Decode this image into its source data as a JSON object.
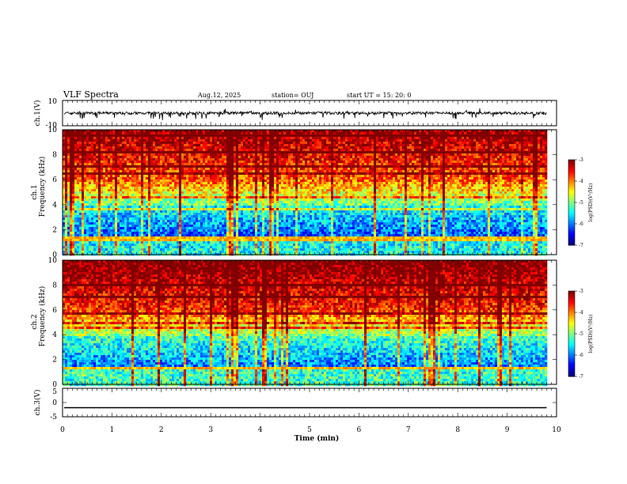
{
  "header": {
    "title": "VLF Spectra",
    "date": "Aug.12, 2025",
    "station": "station= OUJ",
    "start": "start  UT =   15: 20: 0"
  },
  "colors": {
    "waveform": "#000000",
    "frame": "#000000",
    "background": "#ffffff"
  },
  "chart_data": [
    {
      "type": "line",
      "name": "waveform-ch1",
      "ylabel": "ch.1(V)",
      "ylim": [
        -10,
        10
      ],
      "y_ticks": [
        "10",
        "-10"
      ],
      "x_range_min": [
        0,
        9.8
      ],
      "description_values": {
        "mean_level": 0,
        "envelope": [
          -3,
          3
        ]
      }
    },
    {
      "type": "heatmap",
      "name": "spectrogram-ch1",
      "ylabel": "ch.1 Frequency (kHz)",
      "ylim": [
        0,
        10
      ],
      "y_ticks": [
        "0",
        "2",
        "4",
        "6",
        "8",
        "10"
      ],
      "x_range_min": [
        0,
        9.8
      ],
      "colorbar": {
        "label": "log(PSD)(V²/Hz)",
        "range": [
          -7,
          -3
        ],
        "ticks": [
          "-3",
          "-4",
          "-5",
          "-6",
          "-7"
        ]
      }
    },
    {
      "type": "heatmap",
      "name": "spectrogram-ch2",
      "ylabel": "ch.2 Frequency (kHz)",
      "ylim": [
        0,
        10
      ],
      "y_ticks": [
        "0",
        "2",
        "4",
        "6",
        "8",
        "10"
      ],
      "x_range_min": [
        0,
        9.8
      ],
      "colorbar": {
        "label": "log(PSD)(V²/Hz)",
        "range": [
          -7,
          -3
        ],
        "ticks": [
          "-3",
          "-4",
          "-5",
          "-6",
          "-7"
        ]
      }
    },
    {
      "type": "line",
      "name": "waveform-ch3",
      "ylabel": "ch.3(V)",
      "ylim": [
        -5,
        5
      ],
      "y_ticks": [
        "5",
        "0",
        "-5"
      ],
      "x_range_min": [
        0,
        9.8
      ],
      "values_constant": -1.8
    }
  ],
  "axis": {
    "xlabel": "Time  (min)",
    "xlim": [
      0,
      10
    ],
    "x_ticks": [
      "0",
      "1",
      "2",
      "3",
      "4",
      "5",
      "6",
      "7",
      "8",
      "9",
      "10"
    ]
  },
  "labels": {
    "ch1_wave": "ch.1(V)",
    "ch1_spec_a": "ch.1",
    "ch1_spec_b": "Frequency (kHz)",
    "ch2_spec_a": "ch.2",
    "ch2_spec_b": "Frequency (kHz)",
    "ch3_wave": "ch.3(V)",
    "cb_label": "log(PSD)(V²/Hz)"
  }
}
